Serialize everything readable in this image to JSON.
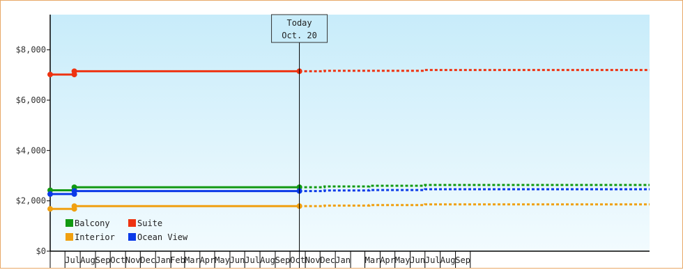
{
  "chart_data": {
    "type": "line",
    "y_axis": {
      "ylim": [
        0,
        9400
      ],
      "ticks": [
        0,
        2000,
        4000,
        6000,
        8000
      ],
      "tick_labels": [
        "$0",
        "$2,000",
        "$4,000",
        "$6,000",
        "$8,000"
      ]
    },
    "x_axis": {
      "start": "2018-06-01",
      "end": "2021-09-30",
      "months": [
        {
          "label": "Jul",
          "start": "2018-07-01",
          "end": "2018-08-01"
        },
        {
          "label": "Aug",
          "start": "2018-08-01",
          "end": "2018-09-01"
        },
        {
          "label": "Sep",
          "start": "2018-09-01",
          "end": "2018-10-01"
        },
        {
          "label": "Oct",
          "start": "2018-10-01",
          "end": "2018-11-01"
        },
        {
          "label": "Nov",
          "start": "2018-11-01",
          "end": "2018-12-01"
        },
        {
          "label": "Dec",
          "start": "2018-12-01",
          "end": "2019-01-01"
        },
        {
          "label": "Jan",
          "start": "2019-01-01",
          "end": "2019-02-01"
        },
        {
          "label": "Feb",
          "start": "2019-02-01",
          "end": "2019-03-01"
        },
        {
          "label": "Mar",
          "start": "2019-03-01",
          "end": "2019-04-01"
        },
        {
          "label": "Apr",
          "start": "2019-04-01",
          "end": "2019-05-01"
        },
        {
          "label": "May",
          "start": "2019-05-01",
          "end": "2019-06-01"
        },
        {
          "label": "Jun",
          "start": "2019-06-01",
          "end": "2019-07-01"
        },
        {
          "label": "Jul",
          "start": "2019-07-01",
          "end": "2019-08-01"
        },
        {
          "label": "Aug",
          "start": "2019-08-01",
          "end": "2019-09-01"
        },
        {
          "label": "Sep",
          "start": "2019-09-01",
          "end": "2019-10-01"
        },
        {
          "label": "Oct",
          "start": "2019-10-01",
          "end": "2019-11-01"
        },
        {
          "label": "Nov",
          "start": "2019-11-01",
          "end": "2019-12-01"
        },
        {
          "label": "Dec",
          "start": "2019-12-01",
          "end": "2020-01-01"
        },
        {
          "label": "Jan",
          "start": "2020-01-01",
          "end": "2020-02-01"
        },
        {
          "label": "",
          "start": "2020-02-01",
          "end": "2020-03-01"
        },
        {
          "label": "Mar",
          "start": "2020-03-01",
          "end": "2020-04-01"
        },
        {
          "label": "Apr",
          "start": "2020-04-01",
          "end": "2020-05-01"
        },
        {
          "label": "May",
          "start": "2020-05-01",
          "end": "2020-06-01"
        },
        {
          "label": "Jun",
          "start": "2020-06-01",
          "end": "2020-07-01"
        },
        {
          "label": "Jul",
          "start": "2020-07-01",
          "end": "2020-08-01"
        },
        {
          "label": "Aug",
          "start": "2020-08-01",
          "end": "2020-09-01"
        },
        {
          "label": "Sep",
          "start": "2020-09-01",
          "end": "2020-10-01"
        }
      ]
    },
    "today_marker": {
      "date": "2019-10-20",
      "line1": "Today",
      "line2": "Oct. 20"
    },
    "legend_position": "bottom-left",
    "series": [
      {
        "name": "Balcony",
        "color": "#119911",
        "points": [
          {
            "x": "2018-06-01",
            "y": 2420
          },
          {
            "x": "2018-07-20",
            "y": 2420
          },
          {
            "x": "2018-07-20",
            "y": 2540
          },
          {
            "x": "2019-10-20",
            "y": 2540
          }
        ],
        "marker_points": [
          {
            "x": "2018-06-01",
            "y": 2420
          },
          {
            "x": "2018-07-20",
            "y": 2420
          },
          {
            "x": "2018-07-20",
            "y": 2540
          },
          {
            "x": "2019-10-20",
            "y": 2540
          }
        ],
        "projection": [
          {
            "x": "2019-10-20",
            "y": 2540
          },
          {
            "x": "2019-12-10",
            "y": 2540
          },
          {
            "x": "2019-12-10",
            "y": 2570
          },
          {
            "x": "2020-03-10",
            "y": 2570
          },
          {
            "x": "2020-03-10",
            "y": 2600
          },
          {
            "x": "2020-07-01",
            "y": 2600
          },
          {
            "x": "2020-07-01",
            "y": 2630
          },
          {
            "x": "2021-09-30",
            "y": 2630
          }
        ]
      },
      {
        "name": "Suite",
        "color": "#ee3311",
        "points": [
          {
            "x": "2018-06-01",
            "y": 7020
          },
          {
            "x": "2018-07-20",
            "y": 7020
          },
          {
            "x": "2018-07-20",
            "y": 7150
          },
          {
            "x": "2019-10-20",
            "y": 7150
          }
        ],
        "marker_points": [
          {
            "x": "2018-06-01",
            "y": 7020
          },
          {
            "x": "2018-07-20",
            "y": 7020
          },
          {
            "x": "2018-07-20",
            "y": 7150
          },
          {
            "x": "2019-10-20",
            "y": 7150
          }
        ],
        "projection": [
          {
            "x": "2019-10-20",
            "y": 7150
          },
          {
            "x": "2019-12-10",
            "y": 7150
          },
          {
            "x": "2019-12-10",
            "y": 7170
          },
          {
            "x": "2020-03-10",
            "y": 7170
          },
          {
            "x": "2020-07-01",
            "y": 7170
          },
          {
            "x": "2020-07-01",
            "y": 7200
          },
          {
            "x": "2021-09-30",
            "y": 7200
          }
        ]
      },
      {
        "name": "Interior",
        "color": "#f0a010",
        "points": [
          {
            "x": "2018-06-01",
            "y": 1680
          },
          {
            "x": "2018-07-20",
            "y": 1680
          },
          {
            "x": "2018-07-20",
            "y": 1790
          },
          {
            "x": "2019-10-20",
            "y": 1790
          }
        ],
        "marker_points": [
          {
            "x": "2018-06-01",
            "y": 1680
          },
          {
            "x": "2018-07-20",
            "y": 1680
          },
          {
            "x": "2018-07-20",
            "y": 1790
          },
          {
            "x": "2019-10-20",
            "y": 1790
          }
        ],
        "projection": [
          {
            "x": "2019-10-20",
            "y": 1790
          },
          {
            "x": "2019-12-10",
            "y": 1790
          },
          {
            "x": "2019-12-10",
            "y": 1810
          },
          {
            "x": "2020-03-10",
            "y": 1810
          },
          {
            "x": "2020-03-10",
            "y": 1830
          },
          {
            "x": "2020-07-01",
            "y": 1830
          },
          {
            "x": "2020-07-01",
            "y": 1860
          },
          {
            "x": "2021-09-30",
            "y": 1860
          }
        ]
      },
      {
        "name": "Ocean View",
        "color": "#0a3ae8",
        "points": [
          {
            "x": "2018-06-01",
            "y": 2270
          },
          {
            "x": "2018-07-20",
            "y": 2270
          },
          {
            "x": "2018-07-20",
            "y": 2390
          },
          {
            "x": "2019-10-20",
            "y": 2390
          }
        ],
        "marker_points": [
          {
            "x": "2018-06-01",
            "y": 2270
          },
          {
            "x": "2018-07-20",
            "y": 2270
          },
          {
            "x": "2018-07-20",
            "y": 2390
          },
          {
            "x": "2019-10-20",
            "y": 2390
          }
        ],
        "projection": [
          {
            "x": "2019-10-20",
            "y": 2390
          },
          {
            "x": "2019-12-10",
            "y": 2390
          },
          {
            "x": "2019-12-10",
            "y": 2410
          },
          {
            "x": "2020-03-10",
            "y": 2410
          },
          {
            "x": "2020-03-10",
            "y": 2430
          },
          {
            "x": "2020-07-01",
            "y": 2430
          },
          {
            "x": "2020-07-01",
            "y": 2460
          },
          {
            "x": "2021-09-30",
            "y": 2460
          }
        ]
      }
    ]
  }
}
